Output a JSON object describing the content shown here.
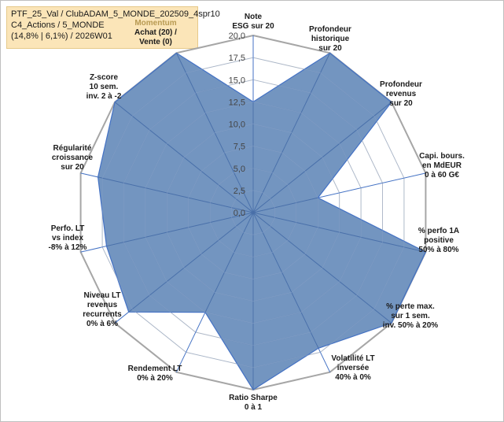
{
  "header": {
    "line1": "PTF_25_Val / ClubADAM_5_MONDE_202509_4spr10",
    "line2": "C4_Actions / 5_MONDE",
    "line3": "(14,8% | 6,1%) / 2026W01"
  },
  "chart_data": {
    "type": "radar",
    "rmin": 0,
    "rmax": 20,
    "ticks": [
      "0,0",
      "2,5",
      "5,0",
      "7,5",
      "10,0",
      "12,5",
      "15,0",
      "17,5",
      "20,0"
    ],
    "grid": true,
    "fill_color": "#5b82b5",
    "line_color": "#4472c4",
    "grid_color": "#c8c8c8",
    "axes": [
      {
        "label": [
          "Note",
          "ESG sur 20"
        ],
        "value": 12.5
      },
      {
        "label": [
          "Profondeur",
          "historique",
          "sur 20"
        ],
        "value": 20
      },
      {
        "label": [
          "Profondeur",
          "revenus",
          "sur 20"
        ],
        "value": 20
      },
      {
        "label": [
          "Capi. bours.",
          "en MdEUR",
          "0 à 60 G€"
        ],
        "value": 7.5
      },
      {
        "label": [
          "% perfo 1A",
          "positive",
          "50% à 80%"
        ],
        "value": 20
      },
      {
        "label": [
          "% perte max.",
          "sur 1 sem.",
          "inv. 50% à 20%"
        ],
        "value": 20
      },
      {
        "label": [
          "Volatilité LT",
          "inversée",
          "40% à 0%"
        ],
        "value": 17
      },
      {
        "label": [
          "Ratio Sharpe",
          "0 à 1"
        ],
        "value": 20
      },
      {
        "label": [
          "Rendement LT",
          "0% à 20%"
        ],
        "value": 12.5
      },
      {
        "label": [
          "Niveau LT",
          "revenus",
          "recurrents",
          "0% à 6%"
        ],
        "value": 18
      },
      {
        "label": [
          "Perfo. LT",
          "vs index",
          "-8% à 12%"
        ],
        "value": 17
      },
      {
        "label": [
          "Régularité",
          "croissance",
          "sur 20"
        ],
        "value": 18
      },
      {
        "label": [
          "Z-score",
          "10 sem.",
          "inv. 2 à -2"
        ],
        "value": 20
      },
      {
        "label": [
          "Momentum",
          "Achat (20) /",
          "Vente (0)"
        ],
        "value": 20,
        "highlight_first_line": true
      }
    ]
  }
}
